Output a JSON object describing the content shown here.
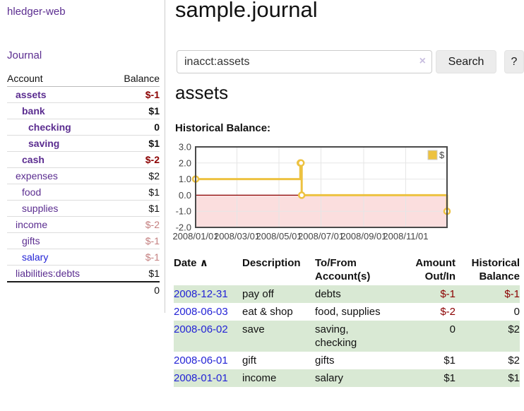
{
  "colors": {
    "accent_purple": "#5b2d90",
    "link_blue": "#2323d6",
    "negative_strong": "#8b0000",
    "negative_soft": "#c47f7f",
    "stripe_green": "#d9e9d4",
    "series_yellow": "#edc240",
    "negative_region_pink": "#fbdede",
    "zero_line_red": "#8b0000"
  },
  "sidebar": {
    "brand": "hledger-web",
    "journal_link": "Journal",
    "accounts_table": {
      "headers": {
        "account": "Account",
        "balance": "Balance"
      },
      "rows": [
        {
          "name": "assets",
          "indent": 1,
          "bold": true,
          "link_color": "purple",
          "balance": "$-1",
          "balance_color": "neg-strong"
        },
        {
          "name": "bank",
          "indent": 2,
          "bold": true,
          "link_color": "purple",
          "balance": "$1",
          "balance_color": "normal"
        },
        {
          "name": "checking",
          "indent": 3,
          "bold": true,
          "link_color": "purple",
          "balance": "0",
          "balance_color": "normal"
        },
        {
          "name": "saving",
          "indent": 3,
          "bold": true,
          "link_color": "purple",
          "balance": "$1",
          "balance_color": "normal"
        },
        {
          "name": "cash",
          "indent": 2,
          "bold": true,
          "link_color": "purple",
          "balance": "$-2",
          "balance_color": "neg-strong"
        },
        {
          "name": "expenses",
          "indent": 1,
          "bold": false,
          "link_color": "purple",
          "balance": "$2",
          "balance_color": "normal"
        },
        {
          "name": "food",
          "indent": 2,
          "bold": false,
          "link_color": "purple",
          "balance": "$1",
          "balance_color": "normal"
        },
        {
          "name": "supplies",
          "indent": 2,
          "bold": false,
          "link_color": "purple",
          "balance": "$1",
          "balance_color": "normal"
        },
        {
          "name": "income",
          "indent": 1,
          "bold": false,
          "link_color": "purple",
          "balance": "$-2",
          "balance_color": "neg-soft"
        },
        {
          "name": "gifts",
          "indent": 2,
          "bold": false,
          "link_color": "purple",
          "balance": "$-1",
          "balance_color": "neg-soft"
        },
        {
          "name": "salary",
          "indent": 2,
          "bold": false,
          "link_color": "blue",
          "balance": "$-1",
          "balance_color": "neg-soft"
        },
        {
          "name": "liabilities:debts",
          "indent": 1,
          "bold": false,
          "link_color": "purple",
          "balance": "$1",
          "balance_color": "normal"
        }
      ],
      "total": "0"
    }
  },
  "header": {
    "title": "sample.journal"
  },
  "search": {
    "value": "inacct:assets",
    "clear_icon": "×",
    "button_label": "Search",
    "help_label": "?"
  },
  "account_page": {
    "heading": "assets",
    "chart_label": "Historical Balance:"
  },
  "chart_data": {
    "type": "line",
    "step": true,
    "title": "Historical Balance of assets",
    "series": [
      {
        "name": "$",
        "color": "#edc240",
        "points": [
          [
            "2008-01-01",
            1
          ],
          [
            "2008-06-01",
            2
          ],
          [
            "2008-06-02",
            2
          ],
          [
            "2008-06-03",
            0
          ],
          [
            "2008-12-31",
            -1
          ]
        ]
      }
    ],
    "x_ticks": [
      "2008/01/01",
      "2008/03/01",
      "2008/05/01",
      "2008/07/01",
      "2008/09/01",
      "2008/11/01"
    ],
    "y_ticks": [
      3.0,
      2.0,
      1.0,
      0.0,
      -1.0,
      -2.0
    ],
    "xlim": [
      "2008-01-01",
      "2008-12-31"
    ],
    "ylim": [
      -2,
      3
    ],
    "grid": true,
    "legend": {
      "label": "$",
      "position": "top-right"
    },
    "negative_region_color": "#fbdede",
    "zero_line_color": "#8b0000",
    "grid_color": "#e6e6e6",
    "border_color": "#4a4a4a",
    "tick_label_color": "#444444"
  },
  "register_table": {
    "headers": {
      "date": "Date",
      "sort_icon": "∧",
      "description": "Description",
      "accounts": "To/From\nAccount(s)",
      "amount": "Amount\nOut/In",
      "balance": "Historical\nBalance"
    },
    "rows": [
      {
        "date": "2008-12-31",
        "description": "pay off",
        "accounts": "debts",
        "amount": "$-1",
        "amount_neg": true,
        "balance": "$-1",
        "balance_neg": true
      },
      {
        "date": "2008-06-03",
        "description": "eat & shop",
        "accounts": "food, supplies",
        "amount": "$-2",
        "amount_neg": true,
        "balance": "0",
        "balance_neg": false
      },
      {
        "date": "2008-06-02",
        "description": "save",
        "accounts": "saving,\nchecking",
        "amount": "0",
        "amount_neg": false,
        "balance": "$2",
        "balance_neg": false
      },
      {
        "date": "2008-06-01",
        "description": "gift",
        "accounts": "gifts",
        "amount": "$1",
        "amount_neg": false,
        "balance": "$2",
        "balance_neg": false
      },
      {
        "date": "2008-01-01",
        "description": "income",
        "accounts": "salary",
        "amount": "$1",
        "amount_neg": false,
        "balance": "$1",
        "balance_neg": false
      }
    ]
  }
}
